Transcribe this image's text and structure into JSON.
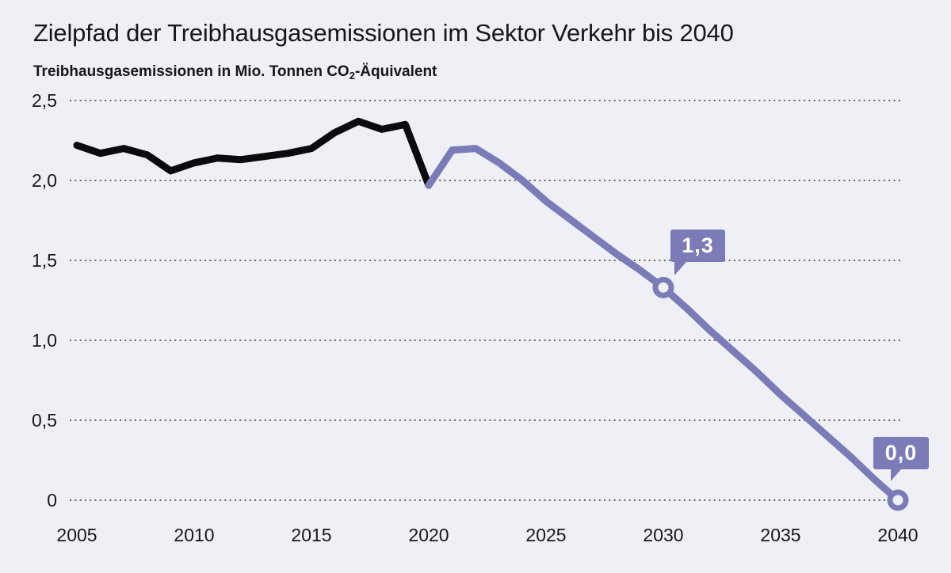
{
  "header": {
    "title": "Zielpfad der Treibhausgasemissionen im Sektor Verkehr bis 2040",
    "subtitle_prefix": "Treibhausgasemissionen in Mio. Tonnen CO",
    "subtitle_sub": "2",
    "subtitle_suffix": "-Äquivalent"
  },
  "colors": {
    "background": "#eff0f5",
    "historical": "#0b0b0d",
    "target": "#7b7bb7",
    "grid": "#626266",
    "text": "#17171a",
    "callout_text": "#ffffff"
  },
  "chart_data": {
    "type": "line",
    "title": "Zielpfad der Treibhausgasemissionen im Sektor Verkehr bis 2040",
    "unit_label": "Treibhausgasemissionen in Mio. Tonnen CO2-Äquivalent",
    "xlim": [
      2005,
      2040
    ],
    "ylim": [
      0,
      2.5
    ],
    "grid": "dotted-horizontal",
    "legend": "none",
    "y_ticks": [
      {
        "value": 2.5,
        "label": "2,5"
      },
      {
        "value": 2.0,
        "label": "2,0"
      },
      {
        "value": 1.5,
        "label": "1,5"
      },
      {
        "value": 1.0,
        "label": "1,0"
      },
      {
        "value": 0.5,
        "label": "0,5"
      },
      {
        "value": 0.0,
        "label": "0"
      }
    ],
    "x_ticks": [
      {
        "year": 2005,
        "label": "2005"
      },
      {
        "year": 2010,
        "label": "2010"
      },
      {
        "year": 2015,
        "label": "2015"
      },
      {
        "year": 2020,
        "label": "2020"
      },
      {
        "year": 2025,
        "label": "2025"
      },
      {
        "year": 2030,
        "label": "2030"
      },
      {
        "year": 2035,
        "label": "2035"
      },
      {
        "year": 2040,
        "label": "2040"
      }
    ],
    "series": [
      {
        "name": "historische-emissionen",
        "color_key": "historical",
        "x": [
          2005,
          2006,
          2007,
          2008,
          2009,
          2010,
          2011,
          2012,
          2013,
          2014,
          2015,
          2016,
          2017,
          2018,
          2019,
          2020
        ],
        "values": [
          2.22,
          2.17,
          2.2,
          2.16,
          2.06,
          2.11,
          2.14,
          2.13,
          2.15,
          2.17,
          2.2,
          2.3,
          2.37,
          2.32,
          2.35,
          1.97
        ]
      },
      {
        "name": "zielpfad",
        "color_key": "target",
        "x": [
          2020,
          2021,
          2022,
          2023,
          2024,
          2025,
          2026,
          2027,
          2028,
          2029,
          2030,
          2031,
          2032,
          2033,
          2034,
          2035,
          2036,
          2037,
          2038,
          2039,
          2040
        ],
        "values": [
          1.97,
          2.19,
          2.2,
          2.11,
          2.0,
          1.87,
          1.76,
          1.65,
          1.54,
          1.44,
          1.33,
          1.2,
          1.06,
          0.93,
          0.8,
          0.66,
          0.53,
          0.4,
          0.27,
          0.13,
          0.0
        ]
      }
    ],
    "markers": [
      {
        "year": 2030,
        "value": 1.33,
        "label": "1,3"
      },
      {
        "year": 2040,
        "value": 0.0,
        "label": "0,0"
      }
    ]
  }
}
